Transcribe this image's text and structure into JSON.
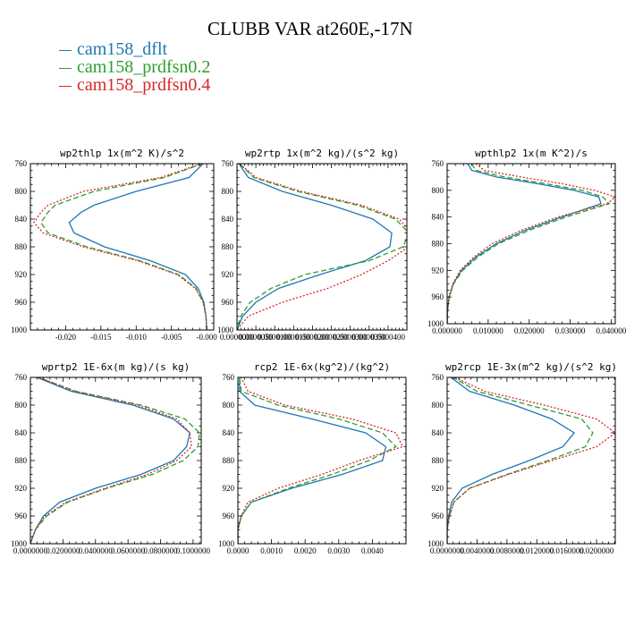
{
  "figure": {
    "title": "CLUBB VAR at260E,-17N",
    "legend": [
      {
        "label": "cam158_dflt",
        "color": "#1f77b4"
      },
      {
        "label": "cam158_prdfsn0.2",
        "color": "#2ca02c"
      },
      {
        "label": "cam158_prdfsn0.4",
        "color": "#d62728"
      }
    ]
  },
  "chart_data": [
    {
      "type": "line",
      "title": "wp2thlp  1x(m^2 K)/s^2",
      "xlim": [
        -0.025,
        0.001
      ],
      "ylim": [
        760,
        1000
      ],
      "y_inverted": true,
      "xticks": [
        -0.02,
        -0.015,
        -0.01,
        -0.005,
        0
      ],
      "xtick_labels": [
        "-0.020",
        "-0.015",
        "-0.010",
        "-0.005",
        "-0.000"
      ],
      "yticks": [
        760,
        800,
        840,
        880,
        920,
        960,
        1000
      ],
      "ytick_labels": [
        "760",
        "800",
        "840",
        "880",
        "920",
        "960",
        "1000"
      ],
      "y": [
        750,
        760,
        780,
        800,
        820,
        830,
        845,
        860,
        880,
        900,
        920,
        940,
        960,
        980,
        1000
      ],
      "series": [
        {
          "name": "cam158_dflt",
          "color": "#1f77b4",
          "style": "solid",
          "values": [
            0.0,
            -0.0005,
            -0.0025,
            -0.01,
            -0.016,
            -0.0178,
            -0.0195,
            -0.0188,
            -0.0145,
            -0.008,
            -0.003,
            -0.0012,
            -0.0004,
            -0.0001,
            0.0
          ]
        },
        {
          "name": "cam158_prdfsn0.2",
          "color": "#2ca02c",
          "style": "dashed",
          "values": [
            0.0,
            -0.0006,
            -0.006,
            -0.016,
            -0.0215,
            -0.0225,
            -0.0235,
            -0.0225,
            -0.017,
            -0.0095,
            -0.004,
            -0.0015,
            -0.0005,
            -0.0001,
            0.0
          ]
        },
        {
          "name": "cam158_prdfsn0.4",
          "color": "#d62728",
          "style": "dotted",
          "values": [
            0.0,
            -0.0007,
            -0.0065,
            -0.0175,
            -0.0225,
            -0.0235,
            -0.0245,
            -0.0232,
            -0.0175,
            -0.0098,
            -0.0042,
            -0.0016,
            -0.0005,
            -0.0001,
            0.0
          ]
        }
      ]
    },
    {
      "type": "line",
      "title": "wp2rtp  1x(m^2 kg)/(s^2 kg)",
      "xlim": [
        0,
        4.5e-05
      ],
      "ylim": [
        760,
        1000
      ],
      "y_inverted": true,
      "xticks": [
        0,
        5e-06,
        1e-05,
        1.5e-05,
        2e-05,
        2.5e-05,
        3e-05,
        3.5e-05,
        4e-05
      ],
      "xtick_labels": [
        "0.0000000",
        "0.0000050",
        "0.0000100",
        "0.0000150",
        "0.0000200",
        "0.0000250",
        "0.0000300",
        "0.0000350",
        "0.0000400"
      ],
      "yticks": [
        760,
        800,
        840,
        880,
        920,
        960,
        1000
      ],
      "ytick_labels": [
        "760",
        "800",
        "840",
        "880",
        "920",
        "960",
        "1000"
      ],
      "y": [
        750,
        760,
        780,
        800,
        820,
        840,
        860,
        880,
        900,
        920,
        940,
        960,
        980,
        1000
      ],
      "series": [
        {
          "name": "cam158_dflt",
          "color": "#1f77b4",
          "style": "solid",
          "values": [
            2e-07,
            5e-07,
            3e-06,
            1.2e-05,
            2.5e-05,
            3.6e-05,
            4.1e-05,
            4.05e-05,
            3.4e-05,
            2.2e-05,
            1.1e-05,
            5e-06,
            1.5e-06,
            0.0
          ],
          "__note": "blue"
        },
        {
          "name": "cam158_prdfsn0.2",
          "color": "#2ca02c",
          "style": "dashed",
          "values": [
            2e-07,
            6e-07,
            4.5e-06,
            1.6e-05,
            3.2e-05,
            4.2e-05,
            4.55e-05,
            4.4e-05,
            3.5e-05,
            1.8e-05,
            9e-06,
            3.5e-06,
            1e-06,
            0.0
          ]
        },
        {
          "name": "cam158_prdfsn0.4",
          "color": "#d62728",
          "style": "dotted",
          "values": [
            2e-07,
            7e-07,
            5e-06,
            1.7e-05,
            3.3e-05,
            4.3e-05,
            4.6e-05,
            4.55e-05,
            4e-05,
            3.3e-05,
            2.4e-05,
            1.2e-05,
            3e-06,
            0.0
          ]
        }
      ]
    },
    {
      "type": "line",
      "title": "wpthlp2  1x(m K^2)/s",
      "xlim": [
        0,
        0.041
      ],
      "ylim": [
        760,
        1000
      ],
      "y_inverted": true,
      "xticks": [
        0.01,
        0.02,
        0.03,
        0.04
      ],
      "xtick_labels": [
        "0.010000",
        "0.020000",
        "0.030000",
        "0.040000"
      ],
      "extra_xtick_labels": [
        {
          "x": 0,
          "label": "0.000000"
        }
      ],
      "yticks": [
        760,
        800,
        840,
        880,
        920,
        960,
        1000
      ],
      "ytick_labels": [
        "760",
        "800",
        "840",
        "880",
        "920",
        "960",
        "1000"
      ],
      "y": [
        760,
        770,
        780,
        790,
        800,
        810,
        820,
        840,
        860,
        880,
        900,
        920,
        940,
        960,
        980,
        1000
      ],
      "series": [
        {
          "name": "cam158_dflt",
          "color": "#1f77b4",
          "style": "solid",
          "values": [
            0.005,
            0.006,
            0.012,
            0.022,
            0.031,
            0.037,
            0.0375,
            0.028,
            0.019,
            0.012,
            0.007,
            0.0035,
            0.0015,
            0.0005,
            0.0001,
            0.0
          ]
        },
        {
          "name": "cam158_prdfsn0.2",
          "color": "#2ca02c",
          "style": "dashed",
          "values": [
            0.006,
            0.007,
            0.014,
            0.024,
            0.033,
            0.038,
            0.0395,
            0.029,
            0.02,
            0.0125,
            0.0075,
            0.0038,
            0.0016,
            0.0005,
            0.0001,
            0.0
          ]
        },
        {
          "name": "cam158_prdfsn0.4",
          "color": "#d62728",
          "style": "dotted",
          "values": [
            0.007,
            0.009,
            0.018,
            0.028,
            0.036,
            0.041,
            0.039,
            0.027,
            0.018,
            0.011,
            0.0065,
            0.0032,
            0.0014,
            0.0004,
            0.0001,
            0.0
          ]
        }
      ]
    },
    {
      "type": "line",
      "title": "wprtp2  1E-6x(m kg)/(s kg)",
      "xlim": [
        0,
        0.105
      ],
      "ylim": [
        760,
        1000
      ],
      "y_inverted": true,
      "xticks": [
        0,
        0.02,
        0.04,
        0.06,
        0.08,
        0.1
      ],
      "xtick_labels": [
        "0.0000000",
        "0.0200000",
        "0.0400000",
        "0.0600000",
        "0.0800000",
        "0.1000000"
      ],
      "yticks": [
        760,
        800,
        840,
        880,
        920,
        960,
        1000
      ],
      "ytick_labels": [
        "760",
        "800",
        "840",
        "880",
        "920",
        "960",
        "1000"
      ],
      "y": [
        750,
        760,
        780,
        800,
        820,
        840,
        860,
        880,
        900,
        920,
        940,
        960,
        980,
        1000
      ],
      "series": [
        {
          "name": "cam158_dflt",
          "color": "#1f77b4",
          "style": "solid",
          "values": [
            0.0,
            0.004,
            0.025,
            0.063,
            0.088,
            0.098,
            0.096,
            0.088,
            0.068,
            0.04,
            0.018,
            0.008,
            0.003,
            0.0
          ]
        },
        {
          "name": "cam158_prdfsn0.2",
          "color": "#2ca02c",
          "style": "dashed",
          "values": [
            0.0,
            0.005,
            0.028,
            0.068,
            0.095,
            0.104,
            0.103,
            0.094,
            0.075,
            0.047,
            0.023,
            0.01,
            0.003,
            0.0
          ]
        },
        {
          "name": "cam158_prdfsn0.4",
          "color": "#d62728",
          "style": "dotted",
          "values": [
            0.0,
            0.005,
            0.027,
            0.066,
            0.09,
            0.098,
            0.099,
            0.09,
            0.072,
            0.046,
            0.022,
            0.009,
            0.003,
            0.0
          ]
        }
      ]
    },
    {
      "type": "line",
      "title": "rcp2  1E-6x(kg^2)/(kg^2)",
      "xlim": [
        0,
        0.005
      ],
      "ylim": [
        760,
        1000
      ],
      "y_inverted": true,
      "xticks": [
        0,
        0.001,
        0.002,
        0.003,
        0.004
      ],
      "xtick_labels": [
        "0.0000",
        "0.0010",
        "0.0020",
        "0.0030",
        "0.0040"
      ],
      "yticks": [
        760,
        800,
        840,
        880,
        920,
        960,
        1000
      ],
      "ytick_labels": [
        "760",
        "800",
        "840",
        "880",
        "920",
        "960",
        "1000"
      ],
      "y": [
        750,
        760,
        780,
        800,
        820,
        840,
        860,
        880,
        900,
        920,
        940,
        960,
        980,
        1000
      ],
      "series": [
        {
          "name": "cam158_dflt",
          "color": "#1f77b4",
          "style": "solid",
          "values": [
            0.0,
            5e-05,
            5e-05,
            0.0005,
            0.0022,
            0.0038,
            0.0044,
            0.0043,
            0.0031,
            0.0016,
            0.0004,
            0.0001,
            0.0,
            0.0
          ]
        },
        {
          "name": "cam158_prdfsn0.2",
          "color": "#2ca02c",
          "style": "dashed",
          "values": [
            0.0,
            5e-05,
            0.0001,
            0.0012,
            0.003,
            0.0043,
            0.0047,
            0.0039,
            0.0028,
            0.0015,
            0.0004,
            0.0001,
            0.0,
            0.0
          ]
        },
        {
          "name": "cam158_prdfsn0.4",
          "color": "#d62728",
          "style": "dotted",
          "values": [
            0.0,
            0.0001,
            0.0003,
            0.0014,
            0.0034,
            0.0047,
            0.0049,
            0.0036,
            0.0025,
            0.0012,
            0.0003,
            0.0001,
            0.0,
            0.0
          ]
        }
      ]
    },
    {
      "type": "line",
      "title": "wp2rcp  1E-3x(m^2 kg)/(s^2 kg)",
      "xlim": [
        0,
        0.0225
      ],
      "ylim": [
        760,
        1000
      ],
      "y_inverted": true,
      "xticks": [
        0,
        0.004,
        0.008,
        0.012,
        0.016,
        0.02
      ],
      "xtick_labels": [
        "0.0000000",
        "0.0040000",
        "0.0080000",
        "0.0120000",
        "0.0160000",
        "0.0200000"
      ],
      "yticks": [
        760,
        800,
        840,
        880,
        920,
        960,
        1000
      ],
      "ytick_labels": [
        "760",
        "800",
        "840",
        "880",
        "920",
        "960",
        "1000"
      ],
      "y": [
        750,
        760,
        780,
        800,
        820,
        840,
        860,
        880,
        900,
        920,
        940,
        960,
        980,
        1000
      ],
      "series": [
        {
          "name": "cam158_dflt",
          "color": "#1f77b4",
          "style": "solid",
          "values": [
            0.0,
            0.0005,
            0.003,
            0.009,
            0.014,
            0.017,
            0.0155,
            0.011,
            0.006,
            0.002,
            0.0006,
            0.0002,
            0.0,
            0.0
          ]
        },
        {
          "name": "cam158_prdfsn0.2",
          "color": "#2ca02c",
          "style": "dashed",
          "values": [
            0.0,
            0.0008,
            0.004,
            0.011,
            0.018,
            0.0195,
            0.0185,
            0.0135,
            0.008,
            0.003,
            0.0009,
            0.0003,
            0.0,
            0.0
          ]
        },
        {
          "name": "cam158_prdfsn0.4",
          "color": "#d62728",
          "style": "dotted",
          "values": [
            0.0,
            0.001,
            0.005,
            0.013,
            0.02,
            0.0225,
            0.02,
            0.014,
            0.0082,
            0.003,
            0.0009,
            0.0003,
            0.0,
            0.0
          ]
        }
      ]
    }
  ]
}
